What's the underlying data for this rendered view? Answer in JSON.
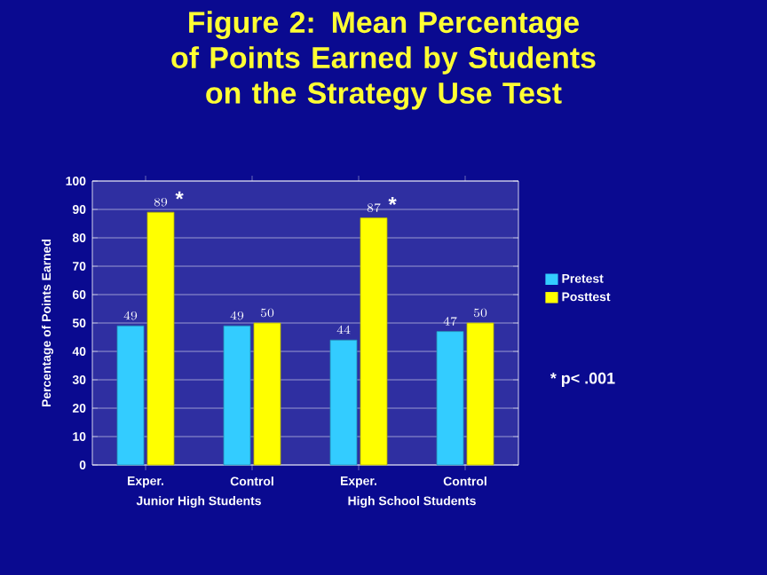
{
  "chart_data": {
    "type": "bar",
    "title": "Figure 2: Mean Percentage of Points Earned by Students on the Strategy Use Test",
    "categories": [
      "Exper.",
      "Control",
      "Exper.",
      "Control"
    ],
    "series": [
      {
        "name": "Pretest",
        "color": "#33ccff",
        "values": [
          49,
          49,
          44,
          47
        ]
      },
      {
        "name": "Posttest",
        "color": "#ffff00",
        "values": [
          89,
          50,
          87,
          50
        ]
      }
    ],
    "ylabel": "Percentage of Points Earned",
    "ylim": [
      0,
      100
    ],
    "yticks": [
      0,
      10,
      20,
      30,
      40,
      50,
      60,
      70,
      80,
      90,
      100
    ],
    "data_labels": true,
    "grid": "y",
    "legend": "right",
    "annotations": [
      "*",
      "*",
      "* p< .001",
      "Junior High Students",
      "High School Students"
    ]
  }
}
